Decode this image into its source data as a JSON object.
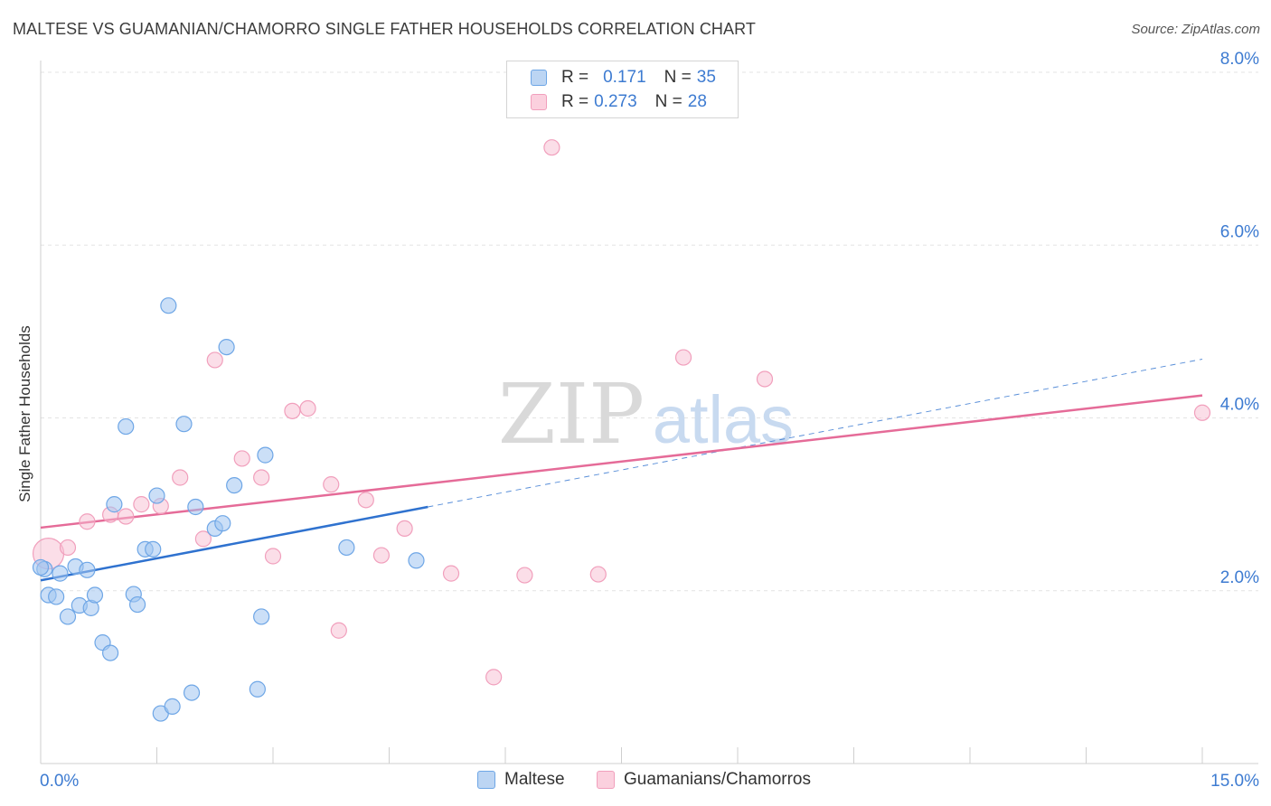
{
  "title": "MALTESE VS GUAMANIAN/CHAMORRO SINGLE FATHER HOUSEHOLDS CORRELATION CHART",
  "source": "Source: ZipAtlas.com",
  "watermark": {
    "zip": "ZIP",
    "atlas": "atlas"
  },
  "colors": {
    "maltese": "#6ea6e6",
    "maltese_line": "#2f72cf",
    "guam": "#f19fbc",
    "guam_line": "#e56b98",
    "axis_text": "#3d7bd1"
  },
  "legend": {
    "rows": [
      {
        "r_label": "R =",
        "r_value": "0.171",
        "n_label": "N =",
        "n_value": "35"
      },
      {
        "r_label": "R =",
        "r_value": "0.273",
        "n_label": "N =",
        "n_value": "28"
      }
    ]
  },
  "bottom_legend": [
    "Maltese",
    "Guamanians/Chamorros"
  ],
  "chart_data": {
    "type": "scatter",
    "xlabel": "",
    "ylabel": "Single Father Households",
    "xlim": [
      0,
      15
    ],
    "ylim": [
      0,
      8
    ],
    "x_tick_labels": [
      "0.0%",
      "15.0%"
    ],
    "y_ticks": [
      2,
      4,
      6,
      8
    ],
    "y_tick_labels": [
      "2.0%",
      "4.0%",
      "6.0%",
      "8.0%"
    ],
    "grid": true,
    "series": [
      {
        "name": "Maltese",
        "points": [
          [
            0.05,
            2.25
          ],
          [
            0.1,
            1.95
          ],
          [
            0.2,
            1.93
          ],
          [
            0.25,
            2.2
          ],
          [
            0.35,
            1.7
          ],
          [
            0.45,
            2.28
          ],
          [
            0.5,
            1.83
          ],
          [
            0.6,
            2.24
          ],
          [
            0.65,
            1.8
          ],
          [
            0.7,
            1.95
          ],
          [
            0.8,
            1.4
          ],
          [
            0.9,
            1.28
          ],
          [
            0.95,
            3.0
          ],
          [
            1.1,
            3.9
          ],
          [
            1.2,
            1.96
          ],
          [
            1.25,
            1.84
          ],
          [
            1.35,
            2.48
          ],
          [
            1.45,
            2.48
          ],
          [
            1.5,
            3.1
          ],
          [
            1.55,
            0.58
          ],
          [
            1.65,
            5.3
          ],
          [
            1.7,
            0.66
          ],
          [
            1.85,
            3.93
          ],
          [
            1.95,
            0.82
          ],
          [
            2.0,
            2.97
          ],
          [
            2.25,
            2.72
          ],
          [
            2.35,
            2.78
          ],
          [
            2.4,
            4.82
          ],
          [
            2.5,
            3.22
          ],
          [
            2.8,
            0.86
          ],
          [
            2.85,
            1.7
          ],
          [
            2.9,
            3.57
          ],
          [
            3.95,
            2.5
          ],
          [
            4.85,
            2.35
          ],
          [
            0.0,
            2.27
          ]
        ],
        "trend": {
          "x0": 0,
          "y0": 2.12,
          "x1": 5.0,
          "y1": 2.97,
          "dashed_to_x": 15,
          "dashed_to_y": 4.68
        }
      },
      {
        "name": "Guamanians/Chamorros",
        "points": [
          [
            0.1,
            2.43
          ],
          [
            0.35,
            2.5
          ],
          [
            0.6,
            2.8
          ],
          [
            0.9,
            2.88
          ],
          [
            1.1,
            2.86
          ],
          [
            1.3,
            3.0
          ],
          [
            1.55,
            2.98
          ],
          [
            1.8,
            3.31
          ],
          [
            2.1,
            2.6
          ],
          [
            2.25,
            4.67
          ],
          [
            2.6,
            3.53
          ],
          [
            2.85,
            3.31
          ],
          [
            3.0,
            2.4
          ],
          [
            3.25,
            4.08
          ],
          [
            3.45,
            4.11
          ],
          [
            3.75,
            3.23
          ],
          [
            3.85,
            1.54
          ],
          [
            4.2,
            3.05
          ],
          [
            4.4,
            2.41
          ],
          [
            4.7,
            2.72
          ],
          [
            5.3,
            2.2
          ],
          [
            5.85,
            1.0
          ],
          [
            6.25,
            2.18
          ],
          [
            6.6,
            7.13
          ],
          [
            7.2,
            2.19
          ],
          [
            8.3,
            4.7
          ],
          [
            9.35,
            4.45
          ],
          [
            15.0,
            4.06
          ]
        ],
        "trend": {
          "x0": 0,
          "y0": 2.73,
          "x1": 15,
          "y1": 4.26
        }
      }
    ]
  }
}
